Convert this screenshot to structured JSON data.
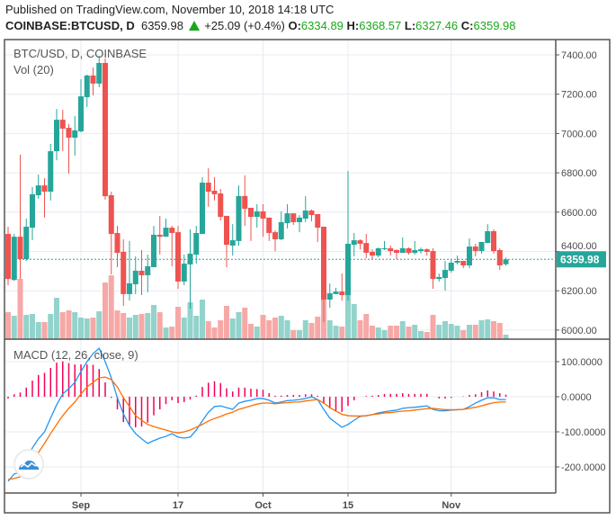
{
  "header": {
    "published": "Published on TradingView.com, November 10, 2018 14:18 UTC",
    "symbol": "COINBASE:BTCUSD, D",
    "last": "6359.98",
    "change": "+25.09 (+0.4%)",
    "o_label": "O:",
    "o": "6334.89",
    "h_label": "H:",
    "h": "6368.57",
    "l_label": "L:",
    "l": "6327.46",
    "c_label": "C:",
    "c": "6359.98"
  },
  "legend": {
    "main": "BTC/USD, D, COINBASE",
    "volume": "Vol (20)",
    "macd": "MACD (12, 26, close, 9)"
  },
  "colors": {
    "up": "#26a69a",
    "down": "#ef5350",
    "vol_up": "#92d3cc",
    "vol_down": "#f7a8a6",
    "macd": "#2196f3",
    "signal": "#ff6d00",
    "histogram": "#f50057",
    "grid": "#e4ecf3",
    "axis": "#555555"
  },
  "chart_data": [
    {
      "type": "candlestick",
      "title": "BTC/USD, D, COINBASE",
      "ylim": [
        5960,
        7440
      ],
      "y_ticks": [
        "7400.00",
        "7200.00",
        "7000.00",
        "6800.00",
        "6600.00",
        "6400.00",
        "6200.00",
        "6000.00"
      ],
      "y_tick_values": [
        7400,
        7200,
        7000,
        6800,
        6600,
        6400,
        6200,
        6000
      ],
      "x_ticks": [
        {
          "label": "Sep",
          "index": 12
        },
        {
          "label": "17",
          "index": 28
        },
        {
          "label": "Oct",
          "index": 42
        },
        {
          "label": "15",
          "index": 56
        },
        {
          "label": "Nov",
          "index": 73
        }
      ],
      "last_price_label": "6359.98",
      "last_price": 6359.98,
      "ohlc": [
        [
          6489,
          6526,
          6228,
          6260
        ],
        [
          6255,
          6489,
          6250,
          6475
        ],
        [
          6475,
          6892,
          6260,
          6361
        ],
        [
          6361,
          6567,
          6352,
          6526
        ],
        [
          6521,
          6727,
          6457,
          6691
        ],
        [
          6686,
          6791,
          6668,
          6736
        ],
        [
          6736,
          6773,
          6572,
          6704
        ],
        [
          6704,
          6947,
          6659,
          6910
        ],
        [
          6910,
          7125,
          6864,
          7070
        ],
        [
          7070,
          7121,
          6910,
          7025
        ],
        [
          7029,
          7048,
          6796,
          6979
        ],
        [
          6979,
          7089,
          6887,
          7016
        ],
        [
          7011,
          7276,
          7006,
          7189
        ],
        [
          7185,
          7300,
          7135,
          7295
        ],
        [
          7295,
          7336,
          7194,
          7254
        ],
        [
          7254,
          7395,
          7235,
          7359
        ],
        [
          7359,
          7382,
          6663,
          6681
        ],
        [
          6686,
          6704,
          6283,
          6489
        ],
        [
          6494,
          6530,
          6320,
          6393
        ],
        [
          6398,
          6462,
          6123,
          6183
        ],
        [
          6183,
          6453,
          6150,
          6238
        ],
        [
          6233,
          6375,
          6183,
          6302
        ],
        [
          6302,
          6407,
          6178,
          6279
        ],
        [
          6279,
          6384,
          6192,
          6325
        ],
        [
          6320,
          6530,
          6320,
          6485
        ],
        [
          6485,
          6581,
          6384,
          6475
        ],
        [
          6475,
          6567,
          6475,
          6521
        ],
        [
          6521,
          6530,
          6325,
          6494
        ],
        [
          6498,
          6530,
          6210,
          6247
        ],
        [
          6247,
          6384,
          6228,
          6338
        ],
        [
          6334,
          6512,
          6109,
          6389
        ],
        [
          6384,
          6530,
          6338,
          6494
        ],
        [
          6489,
          6777,
          6489,
          6750
        ],
        [
          6750,
          6823,
          6627,
          6704
        ],
        [
          6709,
          6777,
          6659,
          6691
        ],
        [
          6695,
          6718,
          6558,
          6576
        ],
        [
          6581,
          6581,
          6320,
          6434
        ],
        [
          6430,
          6539,
          6379,
          6457
        ],
        [
          6453,
          6736,
          6430,
          6682
        ],
        [
          6682,
          6787,
          6530,
          6617
        ],
        [
          6622,
          6622,
          6453,
          6576
        ],
        [
          6576,
          6640,
          6521,
          6604
        ],
        [
          6604,
          6640,
          6475,
          6567
        ],
        [
          6572,
          6572,
          6453,
          6494
        ],
        [
          6498,
          6507,
          6402,
          6462
        ],
        [
          6462,
          6604,
          6457,
          6549
        ],
        [
          6544,
          6640,
          6517,
          6594
        ],
        [
          6594,
          6594,
          6535,
          6549
        ],
        [
          6549,
          6585,
          6498,
          6572
        ],
        [
          6567,
          6681,
          6549,
          6608
        ],
        [
          6608,
          6613,
          6553,
          6585
        ],
        [
          6590,
          6590,
          6448,
          6521
        ],
        [
          6526,
          6526,
          6041,
          6155
        ],
        [
          6155,
          6237,
          6114,
          6187
        ],
        [
          6183,
          6215,
          6183,
          6196
        ],
        [
          6196,
          6288,
          6150,
          6178
        ],
        [
          6178,
          6809,
          6150,
          6439
        ],
        [
          6434,
          6494,
          6375,
          6457
        ],
        [
          6457,
          6462,
          6411,
          6439
        ],
        [
          6443,
          6489,
          6366,
          6393
        ],
        [
          6398,
          6411,
          6361,
          6379
        ],
        [
          6379,
          6420,
          6370,
          6416
        ],
        [
          6411,
          6453,
          6407,
          6416
        ],
        [
          6416,
          6430,
          6379,
          6402
        ],
        [
          6407,
          6411,
          6361,
          6393
        ],
        [
          6393,
          6471,
          6393,
          6416
        ],
        [
          6416,
          6420,
          6384,
          6393
        ],
        [
          6393,
          6453,
          6384,
          6407
        ],
        [
          6402,
          6420,
          6389,
          6411
        ],
        [
          6411,
          6416,
          6379,
          6398
        ],
        [
          6402,
          6416,
          6210,
          6260
        ],
        [
          6260,
          6288,
          6247,
          6270
        ],
        [
          6265,
          6352,
          6201,
          6306
        ],
        [
          6302,
          6357,
          6292,
          6343
        ],
        [
          6343,
          6379,
          6334,
          6352
        ],
        [
          6352,
          6352,
          6315,
          6329
        ],
        [
          6329,
          6466,
          6315,
          6425
        ],
        [
          6425,
          6439,
          6375,
          6402
        ],
        [
          6402,
          6448,
          6389,
          6448
        ],
        [
          6443,
          6539,
          6443,
          6503
        ],
        [
          6503,
          6512,
          6389,
          6402
        ],
        [
          6407,
          6416,
          6306,
          6329
        ],
        [
          6334.89,
          6368.57,
          6327.46,
          6359.98
        ]
      ],
      "volume_relative": [
        30,
        26,
        67,
        27,
        28,
        19,
        19,
        28,
        46,
        30,
        32,
        30,
        24,
        23,
        24,
        31,
        63,
        71,
        32,
        29,
        24,
        27,
        28,
        29,
        38,
        30,
        13,
        14,
        36,
        24,
        41,
        26,
        44,
        20,
        13,
        21,
        37,
        23,
        30,
        35,
        17,
        14,
        27,
        21,
        24,
        26,
        21,
        10,
        10,
        21,
        18,
        25,
        80,
        21,
        15,
        14,
        82,
        39,
        21,
        28,
        15,
        13,
        10,
        15,
        15,
        20,
        14,
        16,
        9,
        8,
        27,
        16,
        20,
        17,
        15,
        10,
        16,
        16,
        21,
        22,
        20,
        18,
        5
      ]
    },
    {
      "type": "line",
      "title": "MACD (12, 26, close, 9)",
      "ylim": [
        -265,
        145
      ],
      "y_ticks": [
        "100.0000",
        "0.0000",
        "-100.0000",
        "-200.0000"
      ],
      "y_tick_values": [
        100,
        0,
        -100,
        -200
      ],
      "series": [
        {
          "name": "MACD",
          "values": [
            -241,
            -220,
            -215,
            -182,
            -146,
            -120,
            -100,
            -61,
            -23,
            8,
            23,
            41,
            72,
            100,
            123,
            138,
            100,
            54,
            -3,
            -49,
            -82,
            -105,
            -120,
            -133,
            -125,
            -118,
            -113,
            -105,
            -115,
            -118,
            -115,
            -95,
            -69,
            -44,
            -28,
            -26,
            -31,
            -36,
            -18,
            -13,
            -10,
            -5,
            -5,
            -10,
            -18,
            -15,
            -11,
            -10,
            -8,
            -5,
            0,
            -8,
            -36,
            -61,
            -74,
            -87,
            -79,
            -67,
            -56,
            -54,
            -51,
            -46,
            -43,
            -40,
            -38,
            -33,
            -31,
            -30,
            -28,
            -26,
            -36,
            -40,
            -40,
            -38,
            -37,
            -36,
            -28,
            -18,
            -10,
            -3,
            -3,
            -8,
            -8
          ]
        },
        {
          "name": "Signal",
          "values": [
            -236,
            -233,
            -228,
            -220,
            -185,
            -159,
            -133,
            -105,
            -79,
            -54,
            -33,
            -15,
            8,
            28,
            41,
            54,
            56,
            49,
            28,
            -3,
            -28,
            -54,
            -67,
            -79,
            -85,
            -90,
            -95,
            -100,
            -103,
            -100,
            -95,
            -87,
            -79,
            -69,
            -62,
            -56,
            -49,
            -44,
            -36,
            -31,
            -26,
            -21,
            -18,
            -18,
            -20,
            -18,
            -17,
            -15,
            -15,
            -12,
            -10,
            -8,
            -18,
            -31,
            -41,
            -50,
            -54,
            -55,
            -55,
            -54,
            -51,
            -49,
            -46,
            -45,
            -43,
            -41,
            -40,
            -38,
            -36,
            -34,
            -33,
            -35,
            -37,
            -37,
            -37,
            -36,
            -33,
            -30,
            -26,
            -21,
            -17,
            -15,
            -15
          ]
        },
        {
          "name": "Histogram",
          "values": [
            -5,
            7,
            12,
            26,
            46,
            62,
            68,
            82,
            97,
            101,
            96,
            92,
            92,
            92,
            91,
            79,
            41,
            -3,
            -36,
            -72,
            -81,
            -87,
            -85,
            -74,
            -53,
            -36,
            -21,
            -10,
            -18,
            -15,
            -8,
            3,
            28,
            40,
            44,
            39,
            24,
            15,
            26,
            26,
            23,
            22,
            20,
            10,
            3,
            3,
            5,
            5,
            5,
            7,
            7,
            3,
            -20,
            -33,
            -40,
            -43,
            -26,
            -10,
            0,
            2,
            3,
            5,
            8,
            8,
            8,
            10,
            8,
            8,
            8,
            8,
            0,
            -5,
            -5,
            -3,
            0,
            1,
            5,
            7,
            13,
            18,
            15,
            10,
            6
          ]
        }
      ]
    }
  ]
}
